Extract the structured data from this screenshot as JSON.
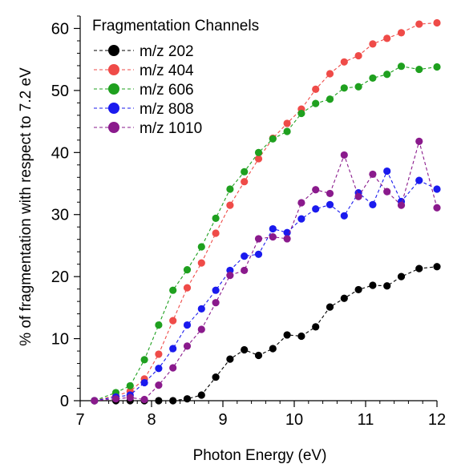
{
  "chart_data": {
    "type": "line",
    "title": "",
    "xlabel": "Photon Energy (eV)",
    "ylabel": "% of fragmentation with respect to 7.2 eV",
    "xlim": [
      7,
      12
    ],
    "ylim": [
      0,
      62
    ],
    "x_ticks": [
      7,
      8,
      9,
      10,
      11,
      12
    ],
    "y_ticks": [
      0,
      10,
      20,
      30,
      40,
      50,
      60
    ],
    "grid": false,
    "legend": {
      "title": "Fragmentation Channels",
      "position": "top-left"
    },
    "series": [
      {
        "name": "m/z 202",
        "color": "#000000",
        "x": [
          7.2,
          7.5,
          7.7,
          7.9,
          8.1,
          8.3,
          8.5,
          8.7,
          8.9,
          9.1,
          9.3,
          9.5,
          9.7,
          9.9,
          10.1,
          10.3,
          10.5,
          10.7,
          10.9,
          11.1,
          11.3,
          11.5,
          11.75,
          12.0
        ],
        "y": [
          0,
          0,
          0,
          0,
          0,
          0,
          0.3,
          0.9,
          3.8,
          6.7,
          8.2,
          7.3,
          8.4,
          10.6,
          10.4,
          11.9,
          15.1,
          16.5,
          17.9,
          18.6,
          18.5,
          20.0,
          21.3,
          21.6
        ]
      },
      {
        "name": "m/z 404",
        "color": "#ef4b48",
        "x": [
          7.2,
          7.5,
          7.7,
          7.9,
          8.1,
          8.3,
          8.5,
          8.7,
          8.9,
          9.1,
          9.3,
          9.5,
          9.7,
          9.9,
          10.1,
          10.3,
          10.5,
          10.7,
          10.9,
          11.1,
          11.3,
          11.5,
          11.75,
          12.0
        ],
        "y": [
          0,
          0.8,
          1.5,
          3.5,
          7.5,
          12.9,
          18.2,
          22.2,
          27.0,
          31.5,
          35.3,
          39.0,
          42.3,
          44.7,
          47.0,
          50.2,
          52.7,
          54.6,
          55.6,
          57.5,
          58.4,
          59.3,
          60.7,
          60.9
        ]
      },
      {
        "name": "m/z 606",
        "color": "#1fa01f",
        "x": [
          7.2,
          7.5,
          7.7,
          7.9,
          8.1,
          8.3,
          8.5,
          8.7,
          8.9,
          9.1,
          9.3,
          9.5,
          9.7,
          9.9,
          10.1,
          10.3,
          10.5,
          10.7,
          10.9,
          11.1,
          11.3,
          11.5,
          11.75,
          12.0
        ],
        "y": [
          0,
          1.3,
          2.4,
          6.6,
          12.2,
          17.8,
          21.1,
          24.8,
          29.4,
          34.1,
          36.9,
          40.0,
          42.2,
          43.4,
          46.3,
          47.9,
          48.6,
          50.4,
          50.6,
          52.0,
          52.6,
          53.9,
          53.4,
          53.8
        ]
      },
      {
        "name": "m/z 808",
        "color": "#1a1aee",
        "x": [
          7.2,
          7.5,
          7.7,
          7.9,
          8.1,
          8.3,
          8.5,
          8.7,
          8.9,
          9.1,
          9.3,
          9.5,
          9.7,
          9.9,
          10.1,
          10.3,
          10.5,
          10.7,
          10.9,
          11.1,
          11.3,
          11.5,
          11.75,
          12.0
        ],
        "y": [
          0,
          0.6,
          0.9,
          2.9,
          5.2,
          8.4,
          12.2,
          14.8,
          17.8,
          21.0,
          23.3,
          23.6,
          27.7,
          27.1,
          29.3,
          30.9,
          31.6,
          29.8,
          33.5,
          31.6,
          37.0,
          32.1,
          35.5,
          34.1
        ]
      },
      {
        "name": "m/z 1010",
        "color": "#8a1a8c",
        "x": [
          7.2,
          7.5,
          7.7,
          7.9,
          8.1,
          8.3,
          8.5,
          8.7,
          8.9,
          9.1,
          9.3,
          9.5,
          9.7,
          9.9,
          10.1,
          10.3,
          10.5,
          10.7,
          10.9,
          11.1,
          11.3,
          11.5,
          11.75,
          12.0
        ],
        "y": [
          0,
          0.3,
          0.5,
          0.2,
          2.5,
          5.3,
          8.8,
          11.5,
          15.8,
          20.2,
          21.0,
          26.1,
          26.4,
          26.1,
          31.9,
          34.0,
          33.4,
          39.6,
          32.9,
          36.5,
          33.7,
          31.5,
          41.8,
          31.1
        ]
      }
    ]
  }
}
